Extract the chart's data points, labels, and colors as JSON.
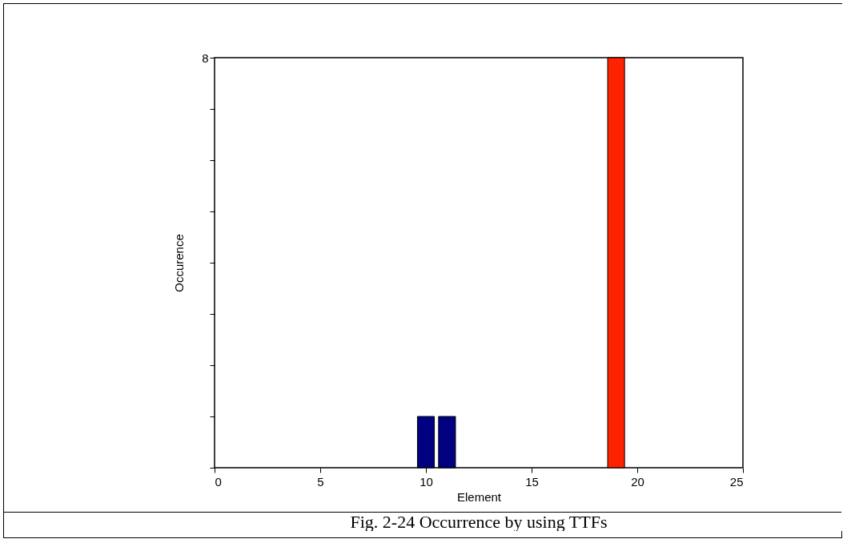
{
  "chart_data": {
    "type": "bar",
    "title": "Fig. 2-24 Occurrence by using TTFs",
    "xlabel": "Element",
    "ylabel": "Occurence",
    "x": [
      10,
      11,
      19
    ],
    "values": [
      1,
      1,
      8
    ],
    "colors": [
      "#000080",
      "#000080",
      "#ff2200"
    ],
    "xlim": [
      0,
      25
    ],
    "xticks": [
      0,
      5,
      10,
      15,
      20,
      25
    ],
    "ylim": [
      0,
      8
    ],
    "yticks": [
      {
        "value": 0,
        "label": null
      },
      {
        "value": 1,
        "label": null
      },
      {
        "value": 2,
        "label": null
      },
      {
        "value": 3,
        "label": null
      },
      {
        "value": 4,
        "label": null
      },
      {
        "value": 5,
        "label": null
      },
      {
        "value": 6,
        "label": null
      },
      {
        "value": 7,
        "label": null
      },
      8
    ],
    "grid": false
  }
}
